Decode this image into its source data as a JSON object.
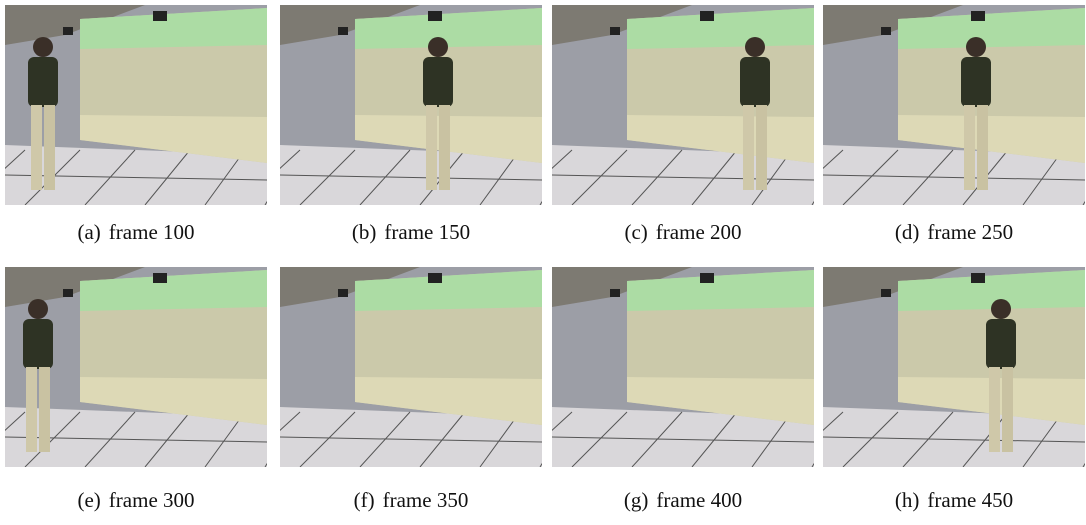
{
  "figure": {
    "panels": [
      {
        "label": "(a)",
        "caption": "frame 100"
      },
      {
        "label": "(b)",
        "caption": "frame 150"
      },
      {
        "label": "(c)",
        "caption": "frame 200"
      },
      {
        "label": "(d)",
        "caption": "frame 250"
      },
      {
        "label": "(e)",
        "caption": "frame 300"
      },
      {
        "label": "(f)",
        "caption": "frame 350"
      },
      {
        "label": "(g)",
        "caption": "frame 400"
      },
      {
        "label": "(h)",
        "caption": "frame 450"
      }
    ]
  }
}
